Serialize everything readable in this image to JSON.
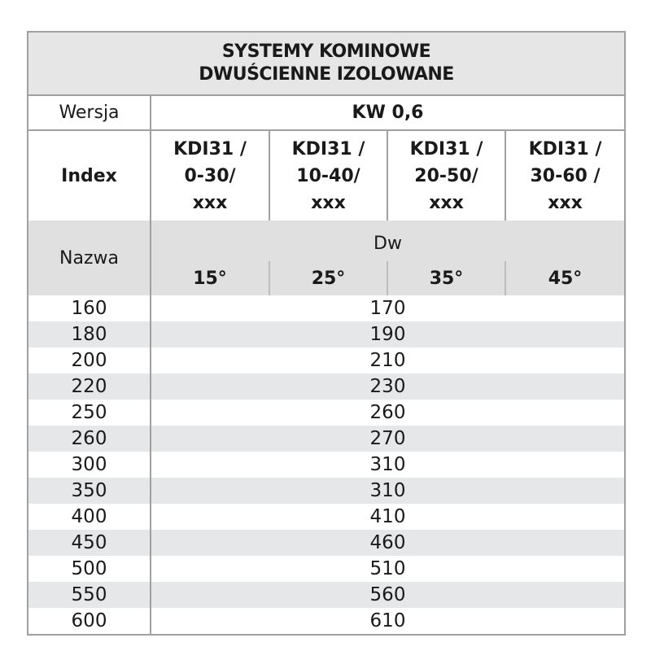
{
  "title": {
    "line1": "SYSTEMY KOMINOWE",
    "line2": "DWUŚCIENNE IZOLOWANE"
  },
  "wersja": {
    "label": "Wersja",
    "value": "KW 0,6"
  },
  "index": {
    "label": "Index",
    "columns": [
      {
        "l1": "KDI31 /",
        "l2": "0-30/",
        "l3": "xxx"
      },
      {
        "l1": "KDI31 /",
        "l2": "10-40/",
        "l3": "xxx"
      },
      {
        "l1": "KDI31 /",
        "l2": "20-50/",
        "l3": "xxx"
      },
      {
        "l1": "KDI31 /",
        "l2": "30-60 /",
        "l3": "xxx"
      }
    ]
  },
  "nazwa": {
    "label": "Nazwa",
    "dw_label": "Dw",
    "angles": [
      "15°",
      "25°",
      "35°",
      "45°"
    ]
  },
  "rows": [
    {
      "nazwa": "160",
      "dw": "170"
    },
    {
      "nazwa": "180",
      "dw": "190"
    },
    {
      "nazwa": "200",
      "dw": "210"
    },
    {
      "nazwa": "220",
      "dw": "230"
    },
    {
      "nazwa": "250",
      "dw": "260"
    },
    {
      "nazwa": "260",
      "dw": "270"
    },
    {
      "nazwa": "300",
      "dw": "310"
    },
    {
      "nazwa": "350",
      "dw": "310"
    },
    {
      "nazwa": "400",
      "dw": "410"
    },
    {
      "nazwa": "450",
      "dw": "460"
    },
    {
      "nazwa": "500",
      "dw": "510"
    },
    {
      "nazwa": "550",
      "dw": "560"
    },
    {
      "nazwa": "600",
      "dw": "610"
    }
  ]
}
